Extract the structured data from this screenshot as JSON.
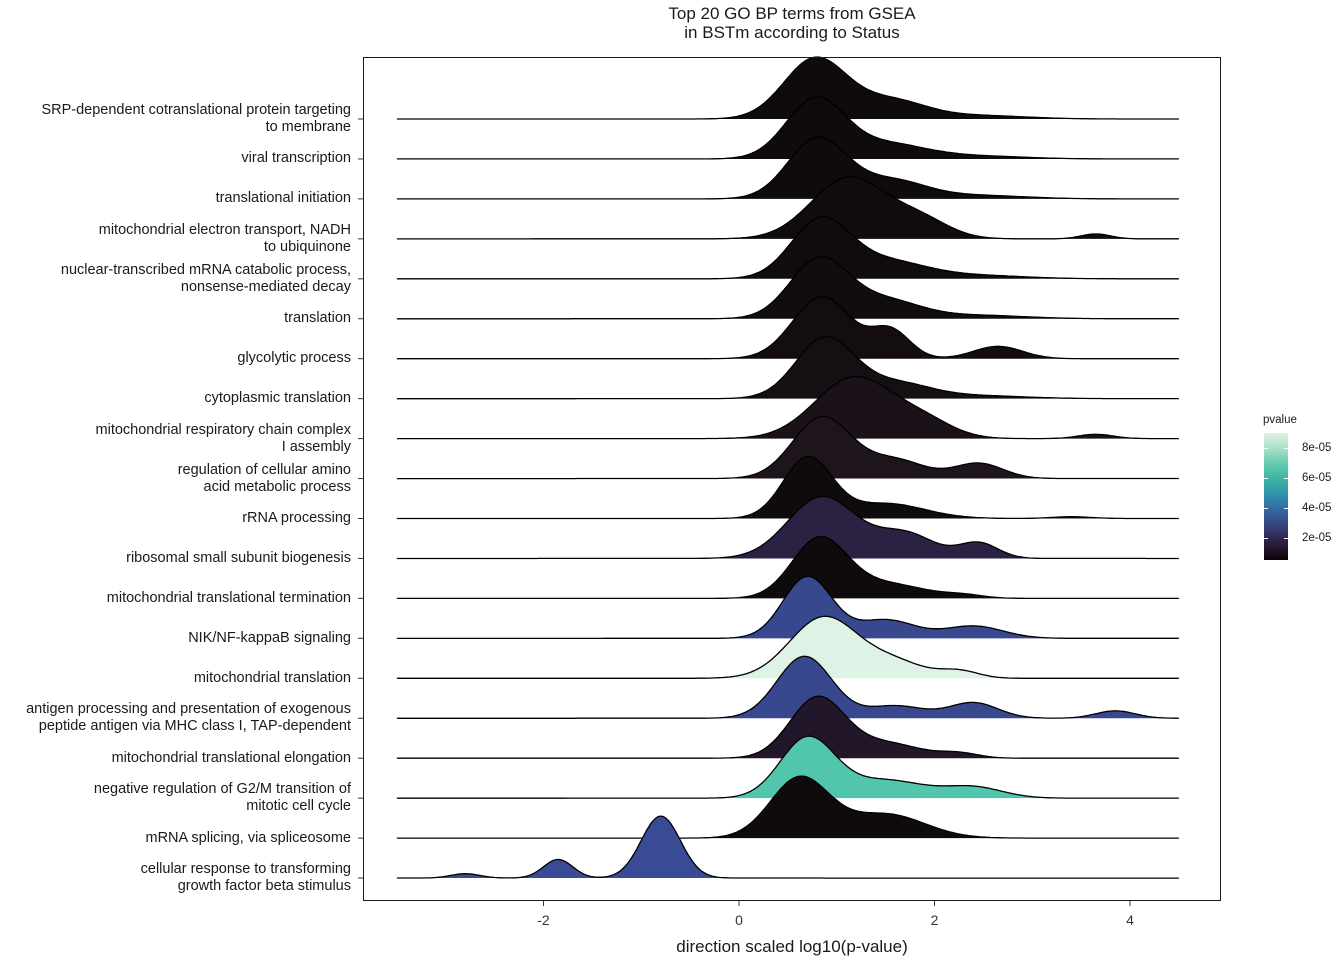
{
  "chart_data": {
    "type": "ridgeline",
    "title": "Top 20 GO BP terms from GSEA in BSTm according to Status",
    "title_lines": [
      "Top 20 GO BP terms from GSEA",
      "in BSTm according to Status"
    ],
    "xlabel": "direction scaled log10(p-value)",
    "x_ticks": [
      -2,
      0,
      2,
      4
    ],
    "xlim": [
      -3.5,
      4.5
    ],
    "color_scale": {
      "title": "pvalue",
      "ticks": [
        "2e-05",
        "4e-05",
        "6e-05",
        "8e-05"
      ],
      "tick_values": [
        2e-05,
        4e-05,
        6e-05,
        8e-05
      ],
      "range": [
        5e-06,
        9e-05
      ]
    },
    "series": [
      {
        "name": "SRP-dependent cotranslational protein targeting to membrane",
        "label_lines": [
          "SRP-dependent cotranslational protein targeting",
          "to membrane"
        ],
        "pvalue": 5e-06,
        "color": "#0f0b0c",
        "components": [
          [
            0.78,
            0.32,
            1.0
          ],
          [
            1.55,
            0.35,
            0.3
          ],
          [
            2.4,
            0.5,
            0.06
          ]
        ]
      },
      {
        "name": "viral transcription",
        "label_lines": [
          "viral transcription"
        ],
        "pvalue": 5e-06,
        "color": "#0f0b0c",
        "components": [
          [
            0.78,
            0.3,
            1.0
          ],
          [
            1.5,
            0.4,
            0.25
          ],
          [
            2.4,
            0.5,
            0.05
          ]
        ]
      },
      {
        "name": "translational initiation",
        "label_lines": [
          "translational initiation"
        ],
        "pvalue": 5e-06,
        "color": "#0f0b0c",
        "components": [
          [
            0.8,
            0.3,
            1.0
          ],
          [
            1.55,
            0.35,
            0.3
          ],
          [
            2.4,
            0.5,
            0.06
          ]
        ]
      },
      {
        "name": "mitochondrial electron transport, NADH to ubiquinone",
        "label_lines": [
          "mitochondrial electron transport, NADH",
          "to ubiquinone"
        ],
        "pvalue": 6e-06,
        "color": "#100b0d",
        "components": [
          [
            1.12,
            0.38,
            1.0
          ],
          [
            1.85,
            0.3,
            0.3
          ],
          [
            3.65,
            0.15,
            0.08
          ]
        ]
      },
      {
        "name": "nuclear-transcribed mRNA catabolic process, nonsense-mediated decay",
        "label_lines": [
          "nuclear-transcribed mRNA catabolic process,",
          "nonsense-mediated decay"
        ],
        "pvalue": 6e-06,
        "color": "#100b0d",
        "components": [
          [
            0.83,
            0.3,
            1.0
          ],
          [
            1.5,
            0.4,
            0.3
          ],
          [
            2.4,
            0.5,
            0.06
          ]
        ]
      },
      {
        "name": "translation",
        "label_lines": [
          "translation"
        ],
        "pvalue": 6e-06,
        "color": "#110c0e",
        "components": [
          [
            0.82,
            0.3,
            1.0
          ],
          [
            1.5,
            0.35,
            0.3
          ],
          [
            2.4,
            0.5,
            0.06
          ]
        ]
      },
      {
        "name": "glycolytic process",
        "label_lines": [
          "glycolytic process"
        ],
        "pvalue": 7e-06,
        "color": "#130d10",
        "components": [
          [
            0.85,
            0.3,
            1.0
          ],
          [
            1.55,
            0.2,
            0.45
          ],
          [
            2.65,
            0.25,
            0.2
          ]
        ]
      },
      {
        "name": "cytoplasmic translation",
        "label_lines": [
          "cytoplasmic translation"
        ],
        "pvalue": 8e-06,
        "color": "#150f13",
        "components": [
          [
            0.88,
            0.3,
            1.0
          ],
          [
            1.6,
            0.35,
            0.25
          ],
          [
            2.4,
            0.5,
            0.05
          ]
        ]
      },
      {
        "name": "mitochondrial respiratory chain complex I assembly",
        "label_lines": [
          "mitochondrial respiratory chain complex",
          "I assembly"
        ],
        "pvalue": 1e-05,
        "color": "#1b1219",
        "components": [
          [
            1.18,
            0.4,
            1.0
          ],
          [
            1.9,
            0.3,
            0.25
          ],
          [
            3.65,
            0.18,
            0.07
          ]
        ]
      },
      {
        "name": "regulation of cellular amino acid metabolic process",
        "label_lines": [
          "regulation of cellular amino",
          "acid metabolic process"
        ],
        "pvalue": 1.2e-05,
        "color": "#1d141c",
        "components": [
          [
            0.85,
            0.3,
            1.0
          ],
          [
            1.6,
            0.3,
            0.3
          ],
          [
            2.45,
            0.25,
            0.25
          ]
        ]
      },
      {
        "name": "rRNA processing",
        "label_lines": [
          "rRNA processing"
        ],
        "pvalue": 5e-06,
        "color": "#0f0b0c",
        "components": [
          [
            0.7,
            0.25,
            1.0
          ],
          [
            1.5,
            0.4,
            0.25
          ],
          [
            3.4,
            0.2,
            0.03
          ]
        ]
      },
      {
        "name": "ribosomal small subunit biogenesis",
        "label_lines": [
          "ribosomal small subunit biogenesis"
        ],
        "pvalue": 1.8e-05,
        "color": "#2b2143",
        "components": [
          [
            0.85,
            0.35,
            1.0
          ],
          [
            1.7,
            0.3,
            0.4
          ],
          [
            2.45,
            0.2,
            0.25
          ]
        ]
      },
      {
        "name": "mitochondrial translational termination",
        "label_lines": [
          "mitochondrial translational termination"
        ],
        "pvalue": 5e-06,
        "color": "#0f0b0c",
        "components": [
          [
            0.82,
            0.28,
            1.0
          ],
          [
            1.5,
            0.4,
            0.25
          ],
          [
            2.3,
            0.2,
            0.05
          ]
        ]
      },
      {
        "name": "NIK/NF-kappaB signaling",
        "label_lines": [
          "NIK/NF-kappaB signaling"
        ],
        "pvalue": 3e-05,
        "color": "#38488f",
        "components": [
          [
            0.7,
            0.25,
            1.0
          ],
          [
            1.5,
            0.3,
            0.3
          ],
          [
            2.4,
            0.3,
            0.2
          ]
        ]
      },
      {
        "name": "mitochondrial translation",
        "label_lines": [
          "mitochondrial translation"
        ],
        "pvalue": 8.8e-05,
        "color": "#def2e5",
        "components": [
          [
            0.87,
            0.35,
            1.0
          ],
          [
            1.6,
            0.3,
            0.25
          ],
          [
            2.25,
            0.2,
            0.12
          ]
        ]
      },
      {
        "name": "antigen processing and presentation of exogenous peptide antigen via MHC class I, TAP-dependent",
        "label_lines": [
          "antigen processing and presentation of exogenous",
          "peptide antigen via MHC class I, TAP-dependent"
        ],
        "pvalue": 3e-05,
        "color": "#38488f",
        "components": [
          [
            0.67,
            0.28,
            1.0
          ],
          [
            1.6,
            0.3,
            0.2
          ],
          [
            2.4,
            0.25,
            0.25
          ],
          [
            3.85,
            0.2,
            0.12
          ]
        ]
      },
      {
        "name": "mitochondrial translational elongation",
        "label_lines": [
          "mitochondrial translational elongation"
        ],
        "pvalue": 1.3e-05,
        "color": "#22172a",
        "components": [
          [
            0.8,
            0.28,
            1.0
          ],
          [
            1.5,
            0.35,
            0.25
          ],
          [
            2.25,
            0.2,
            0.08
          ]
        ]
      },
      {
        "name": "negative regulation of G2/M transition of mitotic cell cycle",
        "label_lines": [
          "negative regulation of G2/M transition of",
          "mitotic cell cycle"
        ],
        "pvalue": 7.2e-05,
        "color": "#52c6ad",
        "components": [
          [
            0.7,
            0.28,
            1.0
          ],
          [
            1.5,
            0.4,
            0.3
          ],
          [
            2.4,
            0.3,
            0.18
          ]
        ]
      },
      {
        "name": "mRNA splicing, via spliceosome",
        "label_lines": [
          "mRNA splicing, via spliceosome"
        ],
        "pvalue": 5e-06,
        "color": "#0f0b0c",
        "components": [
          [
            0.62,
            0.3,
            1.0
          ],
          [
            1.5,
            0.4,
            0.4
          ]
        ]
      },
      {
        "name": "cellular response to transforming growth factor beta stimulus",
        "label_lines": [
          "cellular response to transforming",
          "growth factor beta stimulus"
        ],
        "pvalue": 3.2e-05,
        "color": "#384b94",
        "components": [
          [
            -0.8,
            0.2,
            1.0
          ],
          [
            -1.85,
            0.15,
            0.3
          ],
          [
            -2.8,
            0.15,
            0.07
          ]
        ]
      }
    ]
  }
}
